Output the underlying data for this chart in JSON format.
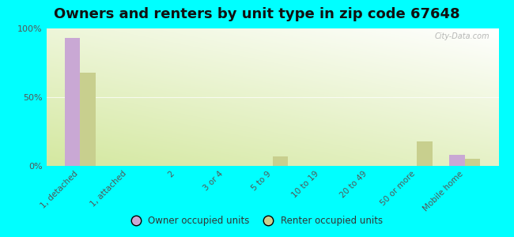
{
  "title": "Owners and renters by unit type in zip code 67648",
  "categories": [
    "1, detached",
    "1, attached",
    "2",
    "3 or 4",
    "5 to 9",
    "10 to 19",
    "20 to 49",
    "50 or more",
    "Mobile home"
  ],
  "owner_values": [
    93,
    0,
    0,
    0,
    0,
    0,
    0,
    0,
    8
  ],
  "renter_values": [
    68,
    0,
    0,
    0,
    7,
    0,
    0,
    18,
    5
  ],
  "owner_color": "#c9a8d4",
  "renter_color": "#c8cf8e",
  "background_color": "#00ffff",
  "ylim": [
    0,
    100
  ],
  "yticks": [
    0,
    50,
    100
  ],
  "ytick_labels": [
    "0%",
    "50%",
    "100%"
  ],
  "bar_width": 0.32,
  "title_fontsize": 13,
  "watermark": "City-Data.com",
  "gradient_colors": [
    "#d4e8a0",
    "#f0f5e0",
    "#fafaf0",
    "#ffffff"
  ],
  "tick_color": "#555555"
}
